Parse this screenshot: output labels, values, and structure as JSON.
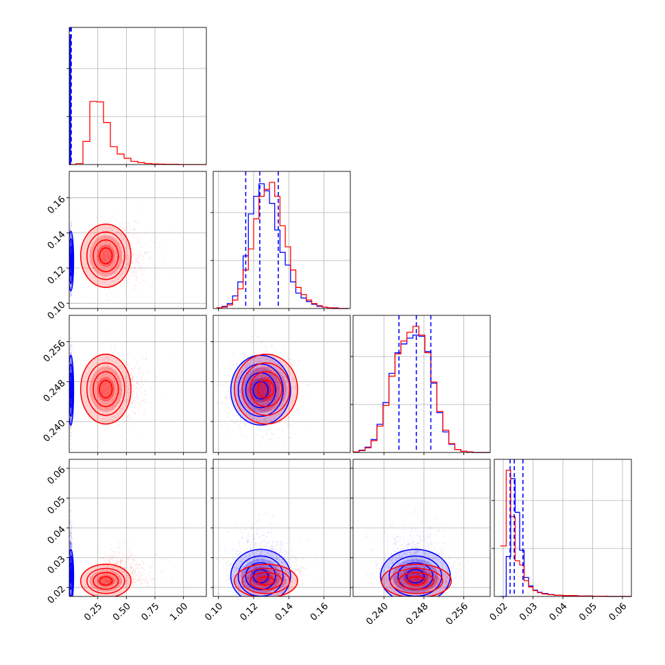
{
  "chart_data": {
    "type": "corner",
    "params": [
      {
        "id": "p1",
        "ticks": [
          0.25,
          0.5,
          0.75,
          1.0
        ],
        "tick_labels": [
          "0.25",
          "0.50",
          "0.75",
          "1.00"
        ],
        "range": [
          0.0,
          1.2
        ]
      },
      {
        "id": "p2",
        "ticks": [
          0.1,
          0.12,
          0.14,
          0.16
        ],
        "tick_labels": [
          "0.10",
          "0.12",
          "0.14",
          "0.16"
        ],
        "range": [
          0.097,
          0.175
        ]
      },
      {
        "id": "p3",
        "ticks": [
          0.24,
          0.248,
          0.256
        ],
        "tick_labels": [
          "0.240",
          "0.248",
          "0.256"
        ],
        "range": [
          0.2338,
          0.2613
        ]
      },
      {
        "id": "p4",
        "ticks": [
          0.02,
          0.03,
          0.04,
          0.05,
          0.06
        ],
        "tick_labels": [
          "0.02",
          "0.03",
          "0.04",
          "0.05",
          "0.06"
        ],
        "range": [
          0.017,
          0.063
        ]
      }
    ],
    "series": [
      {
        "color": "#ff0000",
        "mean": [
          0.32,
          0.127,
          0.2465,
          0.0222
        ],
        "sd": [
          0.11,
          0.009,
          0.0035,
          0.0028
        ],
        "skew": [
          true,
          false,
          false,
          true
        ]
      },
      {
        "color": "#0000ff",
        "mean": [
          0.014,
          0.124,
          0.2463,
          0.0238
        ],
        "sd": [
          0.006,
          0.0085,
          0.0035,
          0.0045
        ],
        "skew": [
          false,
          false,
          false,
          true
        ]
      }
    ],
    "histograms": [
      {
        "param": "p1",
        "red": {
          "bin_edges": [
            0.0,
            0.06,
            0.12,
            0.18,
            0.24,
            0.3,
            0.36,
            0.42,
            0.48,
            0.54,
            0.6,
            0.66,
            0.72,
            0.78,
            0.84,
            0.9,
            0.96,
            1.02,
            1.08,
            1.14,
            1.2
          ],
          "counts": [
            0,
            5,
            110,
            300,
            298,
            200,
            85,
            50,
            30,
            15,
            9,
            5,
            3,
            2,
            1,
            1,
            0,
            0,
            0,
            0
          ]
        },
        "blue": {
          "bin_edges": [
            0.0,
            0.006,
            0.012,
            0.018
          ],
          "counts": [
            0,
            600,
            0
          ]
        },
        "quantiles_blue": [
          0.008,
          0.013,
          0.018
        ]
      },
      {
        "param": "p2",
        "red": {
          "bin_edges": [
            0.099,
            0.102,
            0.105,
            0.108,
            0.111,
            0.114,
            0.117,
            0.12,
            0.123,
            0.126,
            0.129,
            0.132,
            0.135,
            0.138,
            0.141,
            0.144,
            0.147,
            0.15,
            0.153,
            0.156,
            0.159,
            0.162,
            0.165,
            0.168,
            0.171,
            0.174
          ],
          "counts": [
            1,
            2,
            5,
            12,
            28,
            55,
            85,
            128,
            160,
            170,
            180,
            160,
            118,
            88,
            55,
            30,
            20,
            12,
            7,
            4,
            2,
            1,
            1,
            0,
            0
          ]
        },
        "blue": {
          "bin_edges": [
            0.099,
            0.102,
            0.105,
            0.108,
            0.111,
            0.114,
            0.117,
            0.12,
            0.123,
            0.126,
            0.129,
            0.132,
            0.135,
            0.138,
            0.141,
            0.144,
            0.147,
            0.15,
            0.153,
            0.156,
            0.159,
            0.162,
            0.165,
            0.168,
            0.171,
            0.174
          ],
          "counts": [
            1,
            3,
            7,
            18,
            38,
            75,
            135,
            160,
            178,
            168,
            150,
            112,
            80,
            62,
            38,
            22,
            15,
            10,
            6,
            3,
            2,
            1,
            0,
            0,
            0
          ]
        },
        "quantiles_blue": [
          0.1155,
          0.1235,
          0.134
        ]
      },
      {
        "param": "p3",
        "red": {
          "bin_edges": [
            0.2338,
            0.235,
            0.2362,
            0.2374,
            0.2386,
            0.2398,
            0.241,
            0.2422,
            0.2434,
            0.2446,
            0.2458,
            0.247,
            0.2482,
            0.2494,
            0.2506,
            0.2518,
            0.253,
            0.2542,
            0.2554,
            0.2566,
            0.2578,
            0.259,
            0.2602,
            0.2613
          ],
          "counts": [
            1,
            3,
            8,
            20,
            45,
            80,
            130,
            168,
            190,
            205,
            215,
            200,
            170,
            120,
            70,
            38,
            15,
            5,
            2,
            1,
            0,
            0,
            0
          ]
        },
        "blue": {
          "bin_edges": [
            0.2338,
            0.235,
            0.2362,
            0.2374,
            0.2386,
            0.2398,
            0.241,
            0.2422,
            0.2434,
            0.2446,
            0.2458,
            0.247,
            0.2482,
            0.2494,
            0.2506,
            0.2518,
            0.253,
            0.2542,
            0.2554,
            0.2566,
            0.2578,
            0.259,
            0.2602,
            0.2613
          ],
          "counts": [
            1,
            4,
            9,
            22,
            48,
            85,
            135,
            170,
            185,
            195,
            200,
            198,
            172,
            118,
            68,
            35,
            14,
            5,
            2,
            1,
            0,
            0,
            0
          ]
        },
        "quantiles_blue": [
          0.243,
          0.2465,
          0.2494
        ]
      },
      {
        "param": "p4",
        "red": {
          "bin_edges": [
            0.019,
            0.021,
            0.0225,
            0.024,
            0.0255,
            0.027,
            0.0285,
            0.03,
            0.0315,
            0.033,
            0.035,
            0.037,
            0.04,
            0.045,
            0.05,
            0.055,
            0.06,
            0.063
          ],
          "counts": [
            240,
            600,
            380,
            170,
            150,
            75,
            45,
            28,
            18,
            12,
            8,
            6,
            4,
            2,
            1,
            0,
            0
          ]
        },
        "blue": {
          "bin_edges": [
            0.019,
            0.021,
            0.0225,
            0.024,
            0.0255,
            0.027,
            0.0285,
            0.03,
            0.0315,
            0.033,
            0.035,
            0.037,
            0.04,
            0.045,
            0.05,
            0.055,
            0.06,
            0.063
          ],
          "counts": [
            0,
            190,
            560,
            400,
            220,
            90,
            50,
            30,
            20,
            14,
            9,
            6,
            4,
            2,
            1,
            0,
            0
          ]
        },
        "quantiles_blue": [
          0.0223,
          0.0237,
          0.0266
        ]
      }
    ],
    "grid": true,
    "legend": "none"
  }
}
